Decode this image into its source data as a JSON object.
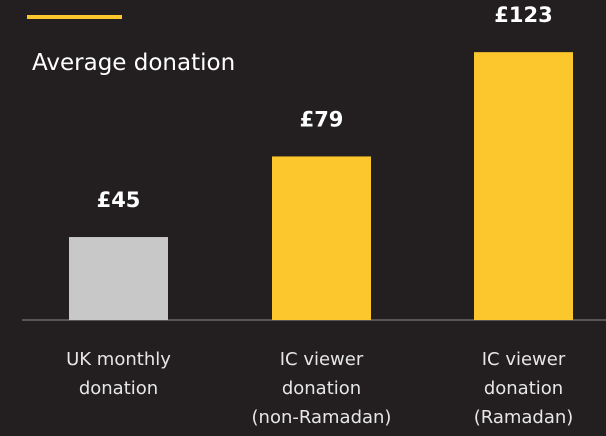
{
  "chart_data": {
    "type": "bar",
    "title": "Average donation",
    "categories": [
      "UK monthly\ndonation",
      "IC viewer\ndonation\n(non-Ramadan)",
      "IC viewer\ndonation\n(Ramadan)"
    ],
    "values": [
      45,
      79,
      123
    ],
    "value_labels": [
      "£45",
      "£79",
      "£123"
    ],
    "colors": [
      "#c8c8c8",
      "#fcc72c",
      "#fcc72c"
    ],
    "ylim": [
      10,
      145
    ]
  }
}
